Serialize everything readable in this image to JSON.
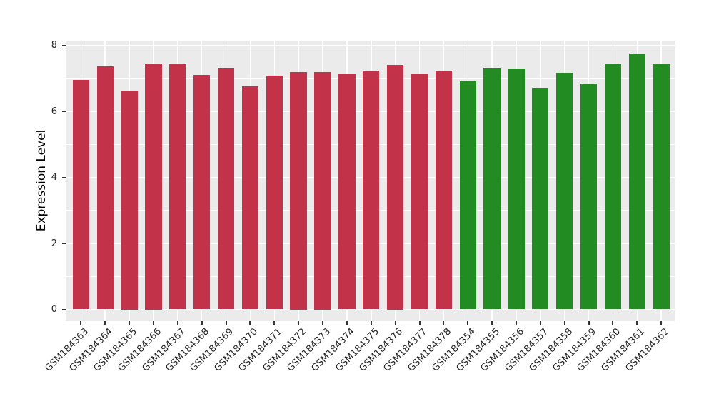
{
  "chart_data": {
    "type": "bar",
    "title": "",
    "xlabel": "",
    "ylabel": "Expression Level",
    "ylim": [
      -0.39,
      8.14
    ],
    "yticks": [
      0,
      2,
      4,
      6,
      8
    ],
    "minor_yticks": [
      1,
      3,
      5,
      7
    ],
    "grid": true,
    "legend_position": "none",
    "panel_background": "#EBEBEB",
    "grid_color": "#FFFFFF",
    "tick_color": "#333333",
    "tick_label_color": "#262626",
    "categories": [
      "GSM184363",
      "GSM184364",
      "GSM184365",
      "GSM184366",
      "GSM184367",
      "GSM184368",
      "GSM184369",
      "GSM184370",
      "GSM184371",
      "GSM184372",
      "GSM184373",
      "GSM184374",
      "GSM184375",
      "GSM184376",
      "GSM184377",
      "GSM184378",
      "GSM184354",
      "GSM184355",
      "GSM184356",
      "GSM184357",
      "GSM184358",
      "GSM184359",
      "GSM184360",
      "GSM184361",
      "GSM184362"
    ],
    "values": [
      6.95,
      7.37,
      6.6,
      7.46,
      7.42,
      7.11,
      7.32,
      6.76,
      7.08,
      7.2,
      7.2,
      7.12,
      7.23,
      7.4,
      7.13,
      7.23,
      6.9,
      7.31,
      7.29,
      6.71,
      7.16,
      6.84,
      7.45,
      7.75,
      7.45
    ],
    "bar_groups": [
      "red",
      "red",
      "red",
      "red",
      "red",
      "red",
      "red",
      "red",
      "red",
      "red",
      "red",
      "red",
      "red",
      "red",
      "red",
      "red",
      "green",
      "green",
      "green",
      "green",
      "green",
      "green",
      "green",
      "green",
      "green"
    ],
    "group_colors": {
      "red": "#C23349",
      "green": "#228B22"
    }
  }
}
